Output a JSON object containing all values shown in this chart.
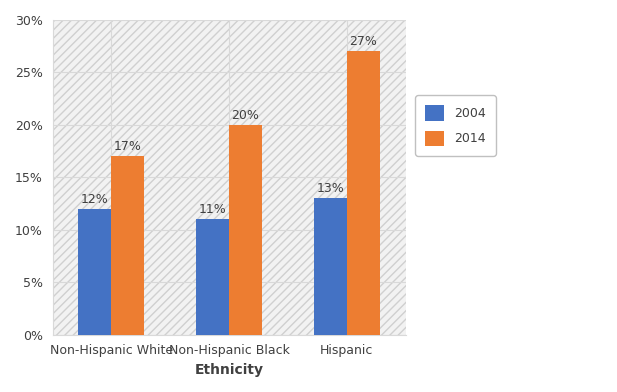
{
  "categories": [
    "Non-Hispanic White",
    "Non-Hispanic Black",
    "Hispanic"
  ],
  "values_2004": [
    12,
    11,
    13
  ],
  "values_2014": [
    17,
    20,
    27
  ],
  "labels_2004": [
    "12%",
    "11%",
    "13%"
  ],
  "labels_2014": [
    "17%",
    "20%",
    "27%"
  ],
  "color_2004": "#4472C4",
  "color_2014": "#ED7D31",
  "legend_2004": "2004",
  "legend_2014": "2014",
  "xlabel": "Ethnicity",
  "ylim": [
    0,
    30
  ],
  "yticks": [
    0,
    5,
    10,
    15,
    20,
    25,
    30
  ],
  "bar_width": 0.28,
  "figsize": [
    6.17,
    3.92
  ],
  "dpi": 100,
  "background_color": "#ffffff",
  "plot_bg_color": "#ffffff",
  "grid_color": "#d9d9d9",
  "xlabel_fontsize": 10,
  "label_fontsize": 9,
  "tick_fontsize": 9,
  "legend_fontsize": 9,
  "hatch_pattern": "////"
}
